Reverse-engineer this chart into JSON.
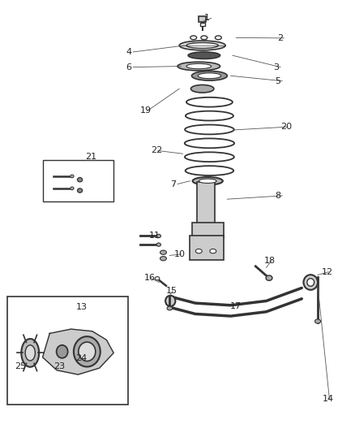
{
  "title": "",
  "bg_color": "#ffffff",
  "fig_width": 4.38,
  "fig_height": 5.33,
  "dpi": 100,
  "text_color": "#222222",
  "font_size": 8,
  "line_color": "#555555",
  "component_color": "#888888",
  "dark_color": "#333333"
}
